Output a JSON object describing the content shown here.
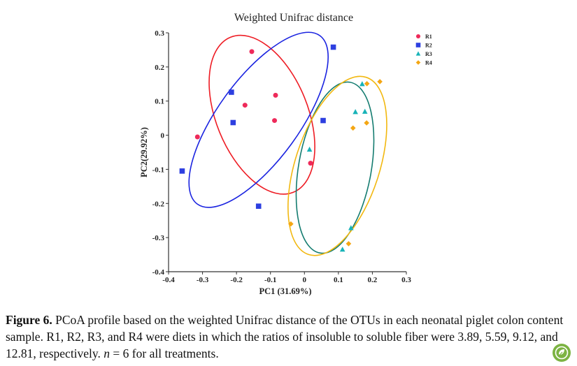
{
  "figure": {
    "caption_label": "Figure 6.",
    "caption_text_1": " PCoA profile based on the weighted Unifrac distance of the OTUs in each neonatal piglet colon content sample. R1, R2, R3, and R4 were diets in which the ratios of insoluble to soluble fiber were 3.89, 5.59, 9.12, and 12.81, respectively. ",
    "caption_n": "n",
    "caption_text_2": " = 6 for all treatments."
  },
  "chart_data": {
    "type": "scatter",
    "title": "Weighted Unifrac distance",
    "xlabel": "PC1 (31.69%)",
    "ylabel": "PC2(29.92%)",
    "xlim": [
      -0.4,
      0.3
    ],
    "ylim": [
      -0.4,
      0.3
    ],
    "x_ticks": [
      "-0.4",
      "-0.3",
      "-0.2",
      "-0.1",
      "0",
      "0.1",
      "0.2",
      "0.3"
    ],
    "y_ticks": [
      "0.3",
      "0.2",
      "0.1",
      "0",
      "-0.1",
      "-0.2",
      "-0.3",
      "-0.4"
    ],
    "legend_position": "top-right",
    "series": [
      {
        "name": "R1",
        "marker": "circle",
        "color": "#ee2a5a",
        "ellipse_color": "#ee1c24",
        "points": [
          [
            -0.155,
            0.245
          ],
          [
            -0.175,
            0.088
          ],
          [
            -0.085,
            0.117
          ],
          [
            -0.088,
            0.043
          ],
          [
            -0.315,
            -0.005
          ],
          [
            0.018,
            -0.082
          ]
        ]
      },
      {
        "name": "R2",
        "marker": "square",
        "color": "#2d3fe0",
        "ellipse_color": "#1a23e0",
        "points": [
          [
            0.085,
            0.258
          ],
          [
            -0.215,
            0.126
          ],
          [
            -0.21,
            0.037
          ],
          [
            0.055,
            0.043
          ],
          [
            -0.36,
            -0.105
          ],
          [
            -0.135,
            -0.208
          ]
        ]
      },
      {
        "name": "R3",
        "marker": "triangle",
        "color": "#18b3b8",
        "ellipse_color": "#147c70",
        "points": [
          [
            0.17,
            0.15
          ],
          [
            0.15,
            0.068
          ],
          [
            0.178,
            0.069
          ],
          [
            0.015,
            -0.042
          ],
          [
            0.137,
            -0.272
          ],
          [
            0.112,
            -0.335
          ]
        ]
      },
      {
        "name": "R4",
        "marker": "diamond",
        "color": "#f4a613",
        "ellipse_color": "#f2b810",
        "points": [
          [
            0.222,
            0.157
          ],
          [
            0.184,
            0.151
          ],
          [
            0.143,
            0.021
          ],
          [
            0.183,
            0.036
          ],
          [
            -0.04,
            -0.26
          ],
          [
            0.13,
            -0.318
          ]
        ]
      }
    ],
    "ellipses": [
      {
        "series": "R1",
        "cx": -0.125,
        "cy": 0.06,
        "rx": 0.135,
        "ry": 0.245,
        "angle": -22
      },
      {
        "series": "R2",
        "cx": -0.135,
        "cy": 0.045,
        "rx": 0.12,
        "ry": 0.305,
        "angle": 36
      },
      {
        "series": "R3",
        "cx": 0.09,
        "cy": -0.095,
        "rx": 0.107,
        "ry": 0.254,
        "angle": 10
      },
      {
        "series": "R4",
        "cx": 0.097,
        "cy": -0.09,
        "rx": 0.124,
        "ry": 0.273,
        "angle": 18
      }
    ]
  }
}
